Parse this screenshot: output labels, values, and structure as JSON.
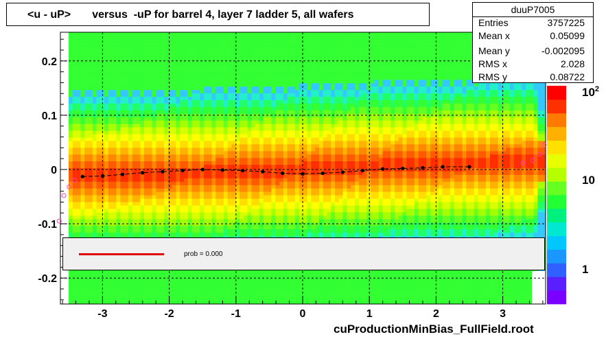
{
  "title": "<u - uP>       versus  -uP for barrel 4, layer 7 ladder 5, all wafers",
  "footer": "cuProductionMinBias_FullField.root",
  "stats": {
    "name": "duuP7005",
    "rows": [
      {
        "label": "Entries",
        "value": "3757225"
      },
      {
        "label": "Mean x",
        "value": "0.05099"
      },
      {
        "label": "Mean y",
        "value": "-0.002095"
      },
      {
        "label": "RMS x",
        "value": "2.028"
      },
      {
        "label": "RMS y",
        "value": "0.08722"
      }
    ]
  },
  "legend": {
    "text": "prob = 0.000"
  },
  "colors": {
    "profile_black": "#000000",
    "profile_magenta": "#ff3fbf",
    "fit_line": "#e00000",
    "legend_bg": "#f0f0f0"
  },
  "chart_data": {
    "type": "heatmap",
    "xlim": [
      -3.7,
      3.7
    ],
    "ylim": [
      -0.25,
      0.25
    ],
    "x_ticks": [
      "-3",
      "-2",
      "-1",
      "0",
      "1",
      "2",
      "3"
    ],
    "y_ticks": [
      "-0.2",
      "-0.1",
      "0",
      "0.1",
      "0.2"
    ],
    "z_scale": "log",
    "z_ticks": [
      "1",
      "10",
      "10^2"
    ],
    "grid": true,
    "series": [
      {
        "x": [
          -3.3,
          -3.0,
          -2.7,
          -2.4,
          -2.1,
          -1.8,
          -1.5,
          -1.2,
          -0.9,
          -0.6,
          -0.3,
          0.0,
          0.3,
          0.6,
          0.9,
          1.2,
          1.5,
          1.8,
          2.1,
          2.5
        ],
        "y": [
          -0.013,
          -0.012,
          -0.009,
          -0.006,
          -0.004,
          -0.002,
          0.0,
          -0.001,
          -0.002,
          -0.004,
          -0.007,
          -0.008,
          -0.007,
          -0.005,
          -0.002,
          0.001,
          0.002,
          0.003,
          0.005,
          0.005
        ]
      },
      {
        "x": [
          -3.65,
          -3.58,
          -3.5,
          -3.42,
          3.3,
          3.45,
          3.55,
          3.62
        ],
        "y": [
          -0.095,
          -0.048,
          -0.032,
          -0.02,
          0.012,
          0.017,
          0.028,
          0.045
        ]
      }
    ]
  }
}
